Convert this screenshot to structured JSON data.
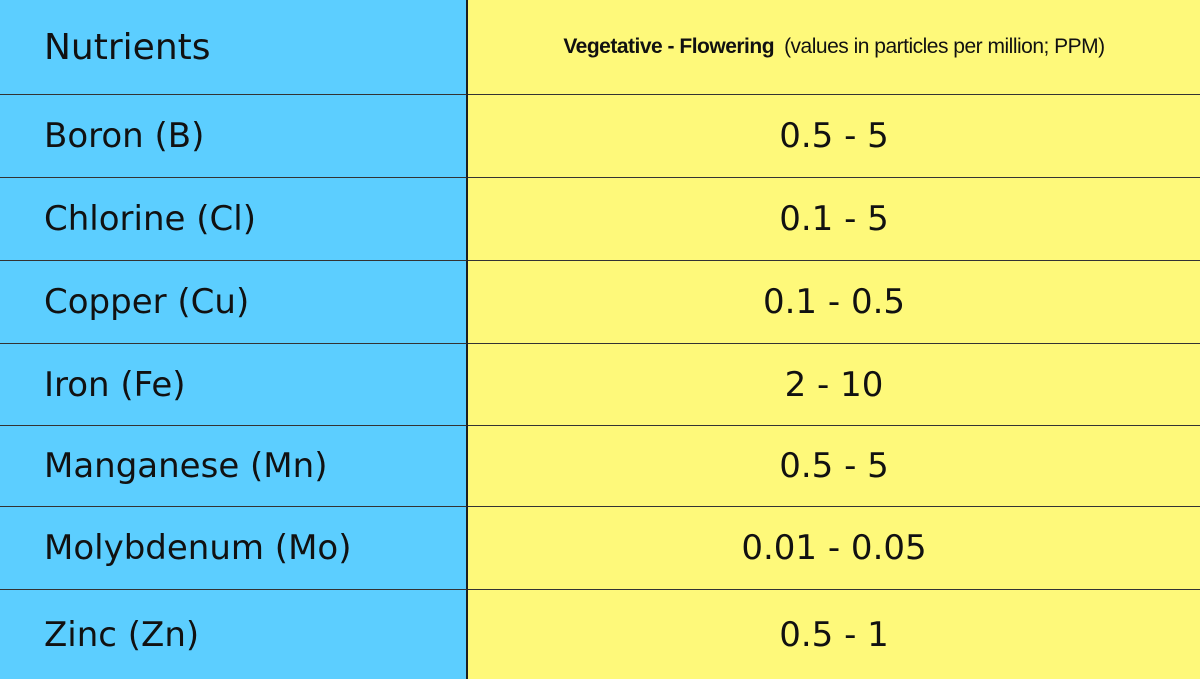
{
  "table": {
    "header": {
      "nutrients_label": "Nutrients",
      "range_label": "Vegetative - Flowering",
      "units_note": "(values in particles per million; PPM)"
    },
    "rows": [
      {
        "nutrient": "Boron (B)",
        "range": "0.5 - 5"
      },
      {
        "nutrient": "Chlorine (Cl)",
        "range": "0.1 - 5"
      },
      {
        "nutrient": "Copper (Cu)",
        "range": "0.1 - 0.5"
      },
      {
        "nutrient": "Iron (Fe)",
        "range": "2 - 10"
      },
      {
        "nutrient": "Manganese (Mn)",
        "range": "0.5 - 5"
      },
      {
        "nutrient": "Molybdenum (Mo)",
        "range": "0.01 - 0.05"
      },
      {
        "nutrient": "Zinc (Zn)",
        "range": "0.5 - 1"
      }
    ],
    "colors": {
      "name_column_bg": "#5cceff",
      "value_column_bg": "#fef97a",
      "border": "#333333"
    }
  }
}
